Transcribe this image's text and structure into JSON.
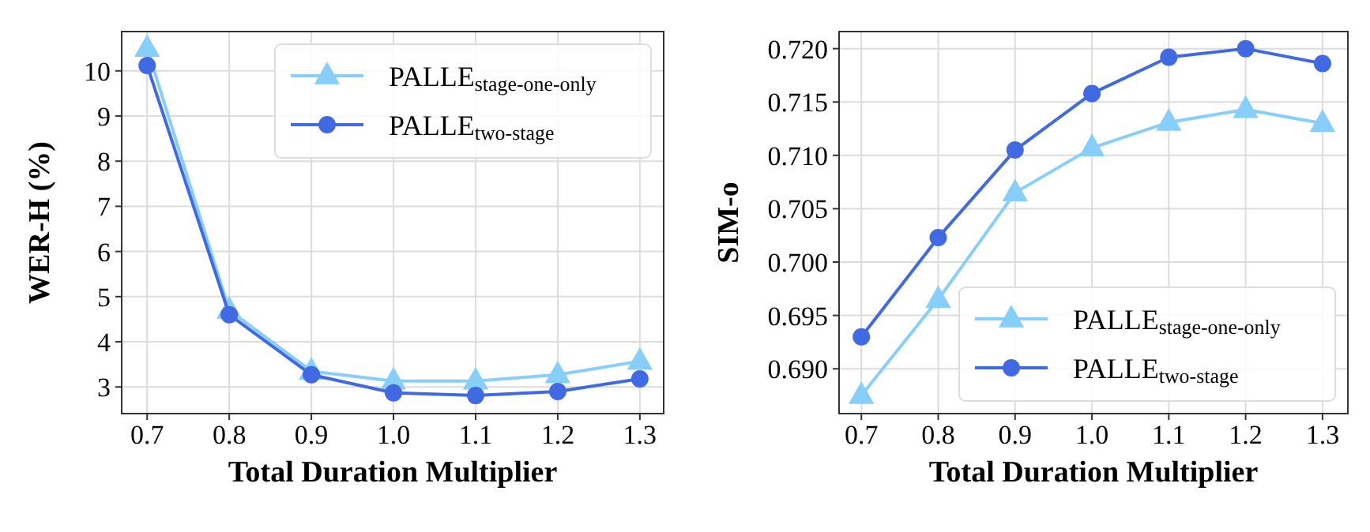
{
  "chart_data": [
    {
      "type": "line",
      "xlabel": "Total Duration Multiplier",
      "ylabel": "WER-H (%)",
      "x": [
        0.7,
        0.8,
        0.9,
        1.0,
        1.1,
        1.2,
        1.3
      ],
      "xlim": [
        0.669,
        1.329
      ],
      "xticks": [
        {
          "value": 0.7,
          "label": "0.7"
        },
        {
          "value": 0.8,
          "label": "0.8"
        },
        {
          "value": 0.9,
          "label": "0.9"
        },
        {
          "value": 1.0,
          "label": "1.0"
        },
        {
          "value": 1.1,
          "label": "1.1"
        },
        {
          "value": 1.2,
          "label": "1.2"
        },
        {
          "value": 1.3,
          "label": "1.3"
        }
      ],
      "ylim": [
        2.41,
        10.87
      ],
      "yticks": [
        3,
        4,
        5,
        6,
        7,
        8,
        9,
        10
      ],
      "grid": true,
      "legend": "top right",
      "series": [
        {
          "name": "PALLE$_{stage-one-only}$",
          "color": "#87cefa",
          "marker": "triangle",
          "values": [
            10.5,
            4.7,
            3.35,
            3.13,
            3.13,
            3.27,
            3.57
          ]
        },
        {
          "name": "PALLE$_{two-stage}$",
          "color": "#4169e1",
          "marker": "circle",
          "values": [
            10.12,
            4.6,
            3.27,
            2.87,
            2.81,
            2.9,
            3.18
          ]
        }
      ]
    },
    {
      "type": "line",
      "xlabel": "Total Duration Multiplier",
      "ylabel": "SIM-o",
      "x": [
        0.7,
        0.8,
        0.9,
        1.0,
        1.1,
        1.2,
        1.3
      ],
      "xlim": [
        0.671,
        1.333
      ],
      "xticks": [
        {
          "value": 0.7,
          "label": "0.7"
        },
        {
          "value": 0.8,
          "label": "0.8"
        },
        {
          "value": 0.9,
          "label": "0.9"
        },
        {
          "value": 1.0,
          "label": "1.0"
        },
        {
          "value": 1.1,
          "label": "1.1"
        },
        {
          "value": 1.2,
          "label": "1.2"
        },
        {
          "value": 1.3,
          "label": "1.3"
        }
      ],
      "ylim": [
        0.6858,
        0.7216
      ],
      "yticks": [
        {
          "value": 0.69,
          "label": "0.690"
        },
        {
          "value": 0.695,
          "label": "0.695"
        },
        {
          "value": 0.7,
          "label": "0.700"
        },
        {
          "value": 0.705,
          "label": "0.705"
        },
        {
          "value": 0.71,
          "label": "0.710"
        },
        {
          "value": 0.715,
          "label": "0.715"
        },
        {
          "value": 0.72,
          "label": "0.720"
        }
      ],
      "grid": true,
      "legend": "bottom right",
      "series": [
        {
          "name": "PALLE$_{stage-one-only}$",
          "color": "#87cefa",
          "marker": "triangle",
          "values": [
            0.6875,
            0.6965,
            0.7065,
            0.7107,
            0.7131,
            0.7143,
            0.713
          ]
        },
        {
          "name": "PALLE$_{two-stage}$",
          "color": "#4169e1",
          "marker": "circle",
          "values": [
            0.693,
            0.7023,
            0.7105,
            0.7158,
            0.7192,
            0.72,
            0.7186
          ]
        }
      ]
    }
  ]
}
